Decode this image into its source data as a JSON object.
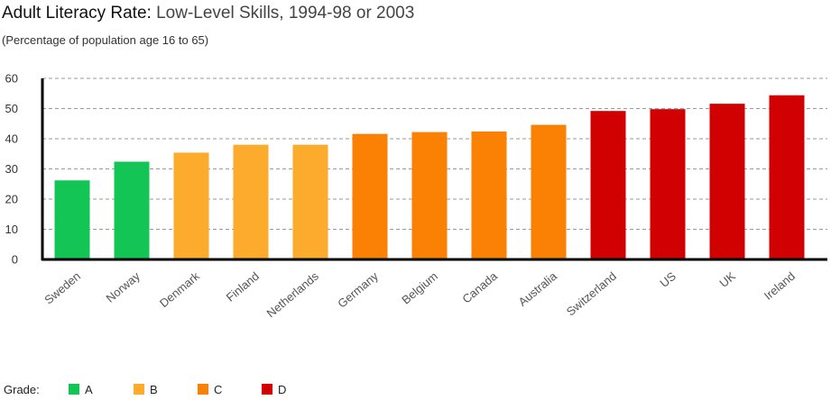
{
  "header": {
    "title_main": "Adult Literacy Rate:",
    "title_rest": " Low-Level Skills, 1994-98 or 2003",
    "subtitle": "(Percentage of population age 16 to 65)"
  },
  "legend": {
    "label": "Grade:",
    "items": [
      {
        "name": "A",
        "color": "#13c555"
      },
      {
        "name": "B",
        "color": "#fdab2c"
      },
      {
        "name": "C",
        "color": "#fb8105"
      },
      {
        "name": "D",
        "color": "#d10101"
      }
    ]
  },
  "chart_data": {
    "type": "bar",
    "ylim": [
      0,
      60
    ],
    "yticks": [
      0,
      10,
      20,
      30,
      40,
      50,
      60
    ],
    "grid": true,
    "categories": [
      "Sweden",
      "Norway",
      "Denmark",
      "Finland",
      "Netherlands",
      "Germany",
      "Belgium",
      "Canada",
      "Australia",
      "Switzerland",
      "US",
      "UK",
      "Ireland"
    ],
    "values": [
      26.2,
      32.4,
      35.4,
      38.0,
      38.0,
      41.6,
      42.2,
      42.4,
      44.6,
      49.2,
      49.8,
      51.6,
      54.4
    ],
    "grades": [
      "A",
      "A",
      "B",
      "B",
      "B",
      "C",
      "C",
      "C",
      "C",
      "D",
      "D",
      "D",
      "D"
    ]
  }
}
